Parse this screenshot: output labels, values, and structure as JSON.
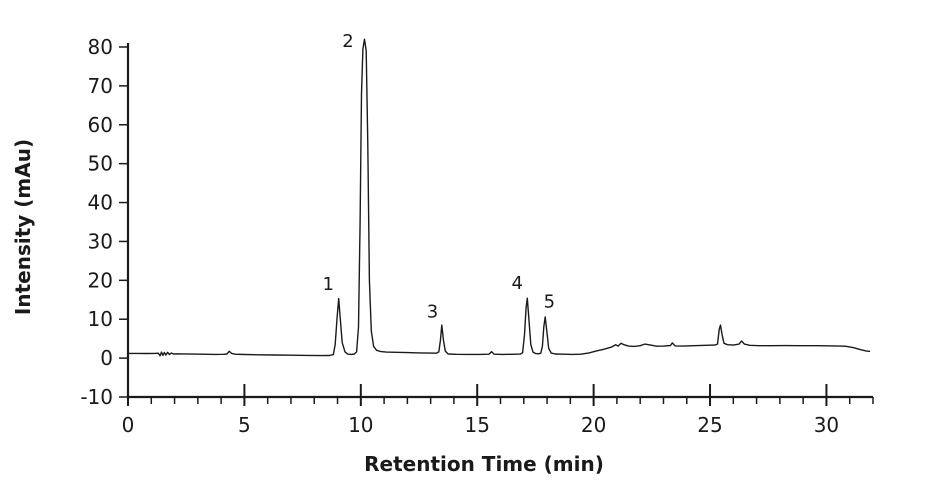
{
  "chart_data": {
    "type": "line",
    "title": "",
    "xlabel": "Retention Time (min)",
    "ylabel": "Intensity (mAu)",
    "xlim": [
      0,
      32
    ],
    "ylim": [
      -10,
      80
    ],
    "x_major_ticks": [
      0,
      5,
      10,
      15,
      20,
      25,
      30
    ],
    "x_minor_tick_step": 1,
    "y_ticks": [
      -10,
      0,
      10,
      20,
      30,
      40,
      50,
      60,
      70,
      80
    ],
    "grid": false,
    "legend": null,
    "line_color": "#1a1a1a",
    "axis_color": "#1a1a1a",
    "background_color": "#ffffff",
    "peaks": [
      {
        "label": "1",
        "time": 9.05,
        "intensity": 15.3,
        "label_pos": [
          8.6,
          19.0
        ]
      },
      {
        "label": "2",
        "time": 10.16,
        "intensity": 82.0,
        "label_pos": [
          9.45,
          81.5
        ]
      },
      {
        "label": "3",
        "time": 13.48,
        "intensity": 8.5,
        "label_pos": [
          13.08,
          12.0
        ]
      },
      {
        "label": "4",
        "time": 17.15,
        "intensity": 15.4,
        "label_pos": [
          16.72,
          19.3
        ]
      },
      {
        "label": "5",
        "time": 17.92,
        "intensity": 10.6,
        "label_pos": [
          18.1,
          14.5
        ]
      }
    ],
    "trace": [
      [
        0,
        1.2
      ],
      [
        0.4,
        1.22
      ],
      [
        0.8,
        1.18
      ],
      [
        1.15,
        1.2
      ],
      [
        1.3,
        1.25
      ],
      [
        1.38,
        0.6
      ],
      [
        1.44,
        1.55
      ],
      [
        1.5,
        0.7
      ],
      [
        1.56,
        1.45
      ],
      [
        1.63,
        0.78
      ],
      [
        1.7,
        1.5
      ],
      [
        1.78,
        0.92
      ],
      [
        1.86,
        1.32
      ],
      [
        1.95,
        1.05
      ],
      [
        2.1,
        1.12
      ],
      [
        2.4,
        1.08
      ],
      [
        2.8,
        1.02
      ],
      [
        3.2,
        1.0
      ],
      [
        3.7,
        0.95
      ],
      [
        4.1,
        0.97
      ],
      [
        4.25,
        1.05
      ],
      [
        4.35,
        1.75
      ],
      [
        4.45,
        1.2
      ],
      [
        4.6,
        1.0
      ],
      [
        5.0,
        0.92
      ],
      [
        5.6,
        0.85
      ],
      [
        6.3,
        0.8
      ],
      [
        7.0,
        0.75
      ],
      [
        7.7,
        0.7
      ],
      [
        8.3,
        0.65
      ],
      [
        8.65,
        0.68
      ],
      [
        8.82,
        0.9
      ],
      [
        8.9,
        3.5
      ],
      [
        8.98,
        10.5
      ],
      [
        9.05,
        15.3
      ],
      [
        9.12,
        10.0
      ],
      [
        9.2,
        4.0
      ],
      [
        9.32,
        1.6
      ],
      [
        9.45,
        1.0
      ],
      [
        9.6,
        0.95
      ],
      [
        9.72,
        1.05
      ],
      [
        9.82,
        1.6
      ],
      [
        9.9,
        8.0
      ],
      [
        9.97,
        35.0
      ],
      [
        10.03,
        68.0
      ],
      [
        10.09,
        79.5
      ],
      [
        10.16,
        82.0
      ],
      [
        10.23,
        79.0
      ],
      [
        10.3,
        55.0
      ],
      [
        10.37,
        20.0
      ],
      [
        10.45,
        7.0
      ],
      [
        10.55,
        3.0
      ],
      [
        10.68,
        2.0
      ],
      [
        10.85,
        1.7
      ],
      [
        11.1,
        1.55
      ],
      [
        11.5,
        1.5
      ],
      [
        12.0,
        1.42
      ],
      [
        12.5,
        1.35
      ],
      [
        13.0,
        1.28
      ],
      [
        13.25,
        1.25
      ],
      [
        13.35,
        1.6
      ],
      [
        13.42,
        4.5
      ],
      [
        13.48,
        8.5
      ],
      [
        13.55,
        4.5
      ],
      [
        13.63,
        1.8
      ],
      [
        13.75,
        1.05
      ],
      [
        14.1,
        0.98
      ],
      [
        14.6,
        0.95
      ],
      [
        15.1,
        0.95
      ],
      [
        15.5,
        1.0
      ],
      [
        15.62,
        1.65
      ],
      [
        15.72,
        1.0
      ],
      [
        16.1,
        0.95
      ],
      [
        16.5,
        0.98
      ],
      [
        16.85,
        1.02
      ],
      [
        16.95,
        1.4
      ],
      [
        17.03,
        6.0
      ],
      [
        17.1,
        13.0
      ],
      [
        17.15,
        15.4
      ],
      [
        17.22,
        10.0
      ],
      [
        17.3,
        3.5
      ],
      [
        17.4,
        1.5
      ],
      [
        17.52,
        1.15
      ],
      [
        17.65,
        1.1
      ],
      [
        17.73,
        1.3
      ],
      [
        17.8,
        3.0
      ],
      [
        17.86,
        8.0
      ],
      [
        17.92,
        10.6
      ],
      [
        17.99,
        7.0
      ],
      [
        18.07,
        2.5
      ],
      [
        18.18,
        1.3
      ],
      [
        18.35,
        1.05
      ],
      [
        18.7,
        1.0
      ],
      [
        19.1,
        0.95
      ],
      [
        19.45,
        1.0
      ],
      [
        19.8,
        1.35
      ],
      [
        20.1,
        1.8
      ],
      [
        20.45,
        2.3
      ],
      [
        20.75,
        2.8
      ],
      [
        20.95,
        3.45
      ],
      [
        21.05,
        3.1
      ],
      [
        21.18,
        3.8
      ],
      [
        21.3,
        3.45
      ],
      [
        21.5,
        3.1
      ],
      [
        21.75,
        3.0
      ],
      [
        22.0,
        3.2
      ],
      [
        22.2,
        3.6
      ],
      [
        22.45,
        3.35
      ],
      [
        22.7,
        3.05
      ],
      [
        23.0,
        3.1
      ],
      [
        23.3,
        3.25
      ],
      [
        23.38,
        3.9
      ],
      [
        23.5,
        3.15
      ],
      [
        23.85,
        3.1
      ],
      [
        24.3,
        3.2
      ],
      [
        24.8,
        3.3
      ],
      [
        25.2,
        3.35
      ],
      [
        25.32,
        3.6
      ],
      [
        25.4,
        7.5
      ],
      [
        25.45,
        8.5
      ],
      [
        25.52,
        6.0
      ],
      [
        25.6,
        3.8
      ],
      [
        25.75,
        3.45
      ],
      [
        26.0,
        3.35
      ],
      [
        26.25,
        3.6
      ],
      [
        26.35,
        4.4
      ],
      [
        26.48,
        3.6
      ],
      [
        26.7,
        3.3
      ],
      [
        27.1,
        3.2
      ],
      [
        27.6,
        3.2
      ],
      [
        28.2,
        3.22
      ],
      [
        28.9,
        3.2
      ],
      [
        29.6,
        3.2
      ],
      [
        30.3,
        3.15
      ],
      [
        30.8,
        3.05
      ],
      [
        31.15,
        2.7
      ],
      [
        31.45,
        2.2
      ],
      [
        31.7,
        1.85
      ],
      [
        31.85,
        1.75
      ]
    ]
  }
}
